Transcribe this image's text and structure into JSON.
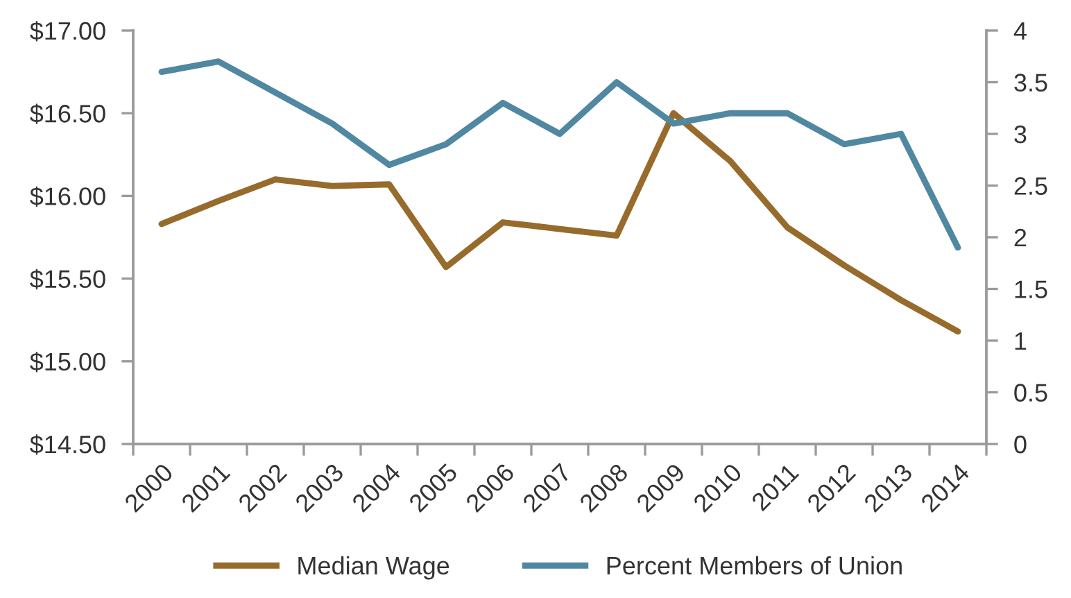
{
  "chart_data": {
    "type": "line",
    "categories": [
      "2000",
      "2001",
      "2002",
      "2003",
      "2004",
      "2005",
      "2006",
      "2007",
      "2008",
      "2009",
      "2010",
      "2011",
      "2012",
      "2013",
      "2014"
    ],
    "series": [
      {
        "name": "Median Wage",
        "color": "#976b2c",
        "values": [
          15.83,
          15.97,
          16.1,
          16.06,
          16.07,
          15.57,
          15.84,
          15.8,
          15.76,
          16.5,
          16.21,
          15.81,
          15.58,
          15.37,
          15.18
        ]
      },
      {
        "name": "Percent Members of Union",
        "color": "#4f88a0",
        "axis": "y2",
        "values": [
          3.6,
          3.7,
          3.4,
          3.1,
          2.7,
          2.9,
          3.3,
          3.0,
          3.5,
          3.1,
          3.2,
          3.2,
          2.9,
          3.0,
          1.9
        ]
      }
    ],
    "ylim": [
      14.5,
      17
    ],
    "yticks": [
      {
        "value": 14.5,
        "label": "$14.50"
      },
      {
        "value": 15,
        "label": "$15.00"
      },
      {
        "value": 15.5,
        "label": "$15.50"
      },
      {
        "value": 16,
        "label": "$16.00"
      },
      {
        "value": 16.5,
        "label": "$16.50"
      },
      {
        "value": 17,
        "label": "$17.00"
      }
    ],
    "y2lim": [
      0,
      4
    ],
    "y2ticks": [
      0,
      0.5,
      1,
      1.5,
      2,
      2.5,
      3,
      3.5,
      4
    ],
    "legend": "bottom",
    "grid": false,
    "marker": "none",
    "line_style": "solid"
  }
}
